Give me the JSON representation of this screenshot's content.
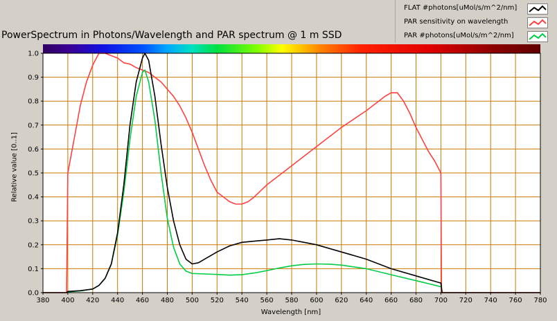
{
  "title": "PowerSpectrum in Photons/Wavelength and PAR spectrum @ 1 m SSD",
  "legend": {
    "items": [
      {
        "label": "FLAT #photons[uMol/s/m^2/nm]",
        "color": "#000000"
      },
      {
        "label": "PAR sensitivity on wavelength",
        "color": "#ff4040"
      },
      {
        "label": "PAR #photons[uMol/s/m^2/nm]",
        "color": "#00cc44"
      }
    ]
  },
  "colors": {
    "plot_background": "#ffffff",
    "grid": "#c87800",
    "frame": "#000000"
  },
  "chart_data": {
    "type": "line",
    "title": "PowerSpectrum in Photons/Wavelength and PAR spectrum @ 1 m SSD",
    "xlabel": "Wavelength [nm]",
    "ylabel": "Relative value [0..1]",
    "xlim": [
      380,
      780
    ],
    "ylim": [
      0,
      1.0
    ],
    "x_ticks": [
      "380",
      "400",
      "420",
      "440",
      "460",
      "480",
      "500",
      "520",
      "540",
      "560",
      "580",
      "600",
      "620",
      "640",
      "660",
      "680",
      "700",
      "720",
      "740",
      "760",
      "780"
    ],
    "y_ticks": [
      "0.0",
      "0.1",
      "0.2",
      "0.3",
      "0.4",
      "0.5",
      "0.6",
      "0.7",
      "0.8",
      "0.9",
      "1.0"
    ],
    "grid": true,
    "spectrum_bar": true,
    "legend_position": "top-right",
    "series": [
      {
        "name": "FLAT #photons[uMol/s/m^2/nm]",
        "color": "#000000",
        "x": [
          380,
          399,
          400,
          410,
          420,
          425,
          430,
          435,
          440,
          445,
          450,
          455,
          460,
          462,
          465,
          470,
          475,
          480,
          485,
          490,
          495,
          500,
          505,
          510,
          520,
          530,
          540,
          550,
          560,
          570,
          580,
          590,
          600,
          620,
          640,
          660,
          680,
          700,
          701,
          780
        ],
        "y": [
          0.0,
          0.0,
          0.005,
          0.008,
          0.015,
          0.03,
          0.06,
          0.12,
          0.25,
          0.45,
          0.7,
          0.88,
          0.98,
          1.0,
          0.97,
          0.82,
          0.62,
          0.44,
          0.3,
          0.2,
          0.14,
          0.12,
          0.125,
          0.14,
          0.17,
          0.195,
          0.21,
          0.215,
          0.22,
          0.225,
          0.22,
          0.21,
          0.2,
          0.17,
          0.14,
          0.1,
          0.07,
          0.04,
          0.0,
          0.0
        ]
      },
      {
        "name": "PAR sensitivity on wavelength",
        "color": "#ff4040",
        "x": [
          380,
          399,
          400,
          405,
          410,
          415,
          420,
          425,
          430,
          435,
          440,
          445,
          450,
          455,
          460,
          465,
          470,
          475,
          480,
          485,
          490,
          495,
          500,
          505,
          510,
          515,
          520,
          525,
          530,
          535,
          540,
          545,
          550,
          560,
          580,
          600,
          620,
          640,
          650,
          655,
          660,
          665,
          670,
          675,
          680,
          685,
          690,
          695,
          700,
          700.5,
          780
        ],
        "y": [
          0.0,
          0.0,
          0.5,
          0.64,
          0.78,
          0.88,
          0.95,
          1.0,
          1.0,
          0.99,
          0.98,
          0.96,
          0.955,
          0.94,
          0.93,
          0.92,
          0.9,
          0.88,
          0.85,
          0.82,
          0.78,
          0.73,
          0.67,
          0.6,
          0.53,
          0.47,
          0.42,
          0.4,
          0.38,
          0.37,
          0.37,
          0.38,
          0.4,
          0.45,
          0.53,
          0.61,
          0.69,
          0.76,
          0.8,
          0.82,
          0.835,
          0.835,
          0.8,
          0.75,
          0.69,
          0.64,
          0.59,
          0.55,
          0.5,
          0.0,
          0.0
        ]
      },
      {
        "name": "PAR #photons[uMol/s/m^2/nm]",
        "color": "#00cc44",
        "x": [
          400,
          410,
          420,
          425,
          430,
          435,
          440,
          445,
          450,
          455,
          460,
          462,
          465,
          470,
          475,
          480,
          485,
          490,
          495,
          500,
          510,
          520,
          530,
          540,
          550,
          560,
          570,
          580,
          590,
          600,
          610,
          620,
          640,
          660,
          680,
          700
        ],
        "y": [
          0.003,
          0.007,
          0.015,
          0.03,
          0.06,
          0.12,
          0.24,
          0.42,
          0.64,
          0.82,
          0.92,
          0.93,
          0.88,
          0.72,
          0.5,
          0.31,
          0.19,
          0.12,
          0.09,
          0.08,
          0.078,
          0.076,
          0.073,
          0.075,
          0.082,
          0.092,
          0.103,
          0.112,
          0.118,
          0.12,
          0.119,
          0.115,
          0.1,
          0.075,
          0.05,
          0.025
        ]
      }
    ]
  }
}
